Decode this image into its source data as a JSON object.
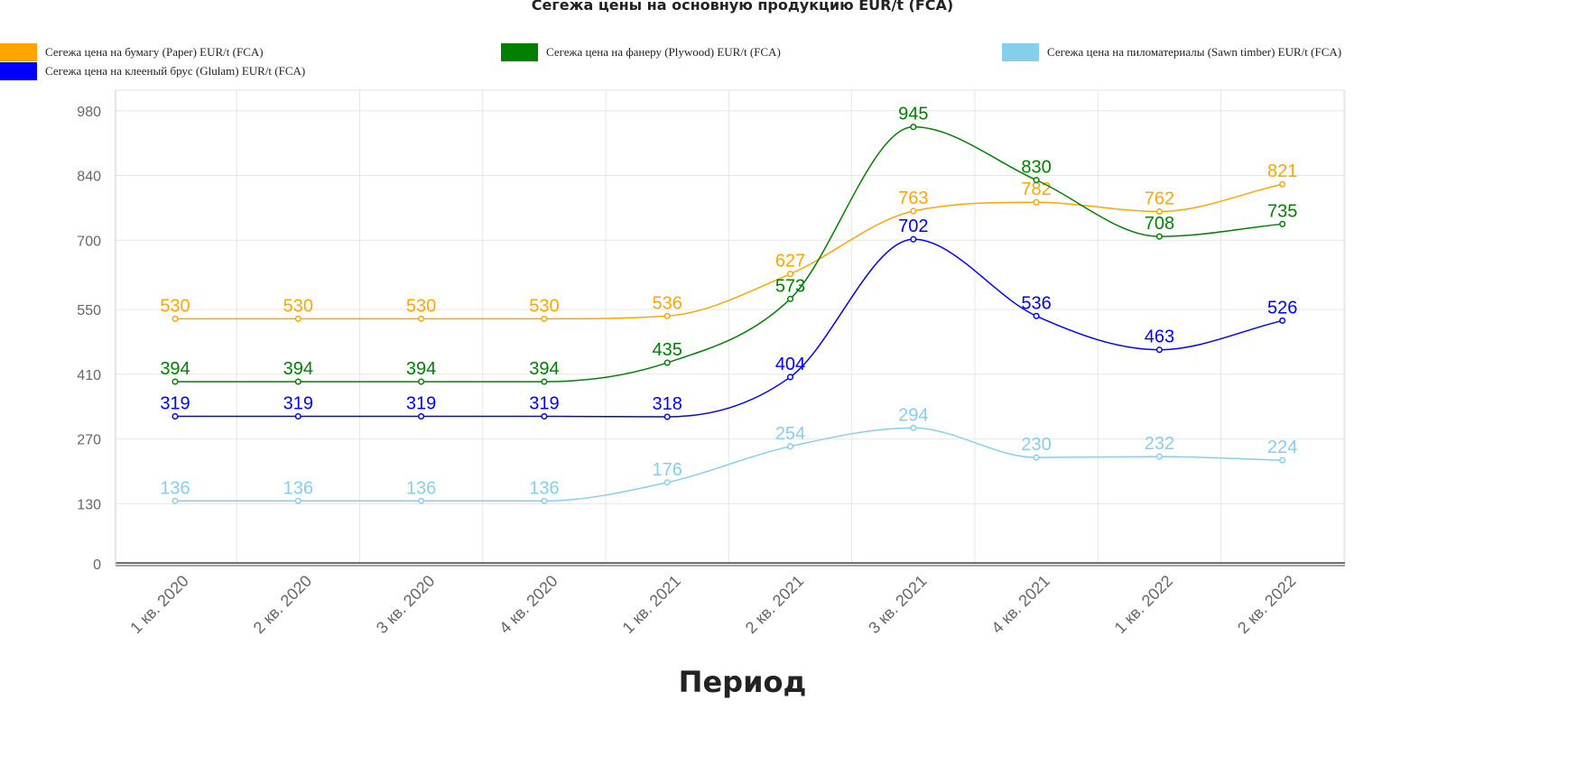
{
  "chart_data": {
    "type": "line",
    "title": "Сегежа цены на основную продукцию EUR/t (FCA)",
    "xlabel": "Период",
    "ylabel": "",
    "categories": [
      "1 кв. 2020",
      "2 кв. 2020",
      "3 кв. 2020",
      "4 кв. 2020",
      "1 кв. 2021",
      "2 кв. 2021",
      "3 кв. 2021",
      "4 кв. 2021",
      "1 кв. 2022",
      "2 кв. 2022"
    ],
    "ylim": [
      0,
      1020
    ],
    "yticks": [
      0,
      130,
      270,
      410,
      550,
      700,
      840,
      980
    ],
    "grid": true,
    "legend_position": "top",
    "series": [
      {
        "name": "Сегежа цена на бумагу (Paper) EUR/t (FCA)",
        "color": "#FFA500",
        "values": [
          530,
          530,
          530,
          530,
          536,
          627,
          763,
          782,
          762,
          821
        ]
      },
      {
        "name": "Сегежа цена на фанеру (Plywood) EUR/t (FCA)",
        "color": "#008000",
        "values": [
          394,
          394,
          394,
          394,
          435,
          573,
          945,
          830,
          708,
          735
        ]
      },
      {
        "name": "Сегежа цена на пиломатериалы (Sawn timber) EUR/t (FCA)",
        "color": "#87CEEB",
        "values": [
          136,
          136,
          136,
          136,
          176,
          254,
          294,
          230,
          232,
          224
        ]
      },
      {
        "name": "Сегежа цена на клееный брус (Glulam) EUR/t (FCA)",
        "color": "#0000FF",
        "values": [
          319,
          319,
          319,
          319,
          318,
          404,
          702,
          536,
          463,
          526
        ]
      }
    ]
  }
}
